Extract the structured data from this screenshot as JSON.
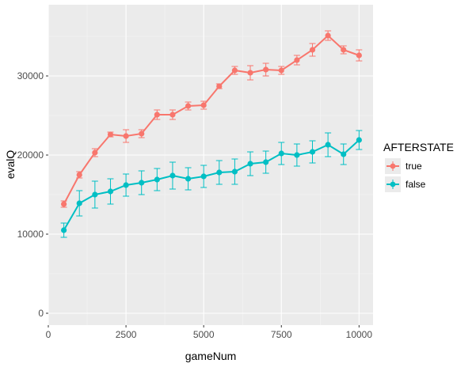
{
  "chart_data": {
    "type": "line",
    "title": "",
    "xlabel": "gameNum",
    "ylabel": "evalQ",
    "xlim": [
      0,
      10450
    ],
    "ylim": [
      -1500,
      39000
    ],
    "x_ticks": [
      0,
      2500,
      5000,
      7500,
      10000
    ],
    "x_tick_labels": [
      "0",
      "2500",
      "5000",
      "7500",
      "10000"
    ],
    "y_ticks": [
      0,
      10000,
      20000,
      30000
    ],
    "y_tick_labels": [
      "0",
      "10000",
      "20000",
      "30000"
    ],
    "grid": true,
    "legend": {
      "title": "AFTERSTATE",
      "position": "right"
    },
    "series": [
      {
        "name": "true",
        "color": "#F8766D",
        "x": [
          500,
          1000,
          1500,
          2000,
          2500,
          3000,
          3500,
          4000,
          4500,
          5000,
          5500,
          6000,
          6500,
          7000,
          7500,
          8000,
          8500,
          9000,
          9500,
          10000
        ],
        "y": [
          13800,
          17500,
          20300,
          22600,
          22400,
          22700,
          25100,
          25100,
          26200,
          26300,
          28700,
          30700,
          30400,
          30800,
          30700,
          32000,
          33300,
          35100,
          33300,
          32600
        ],
        "err": [
          400,
          400,
          500,
          300,
          800,
          500,
          600,
          600,
          500,
          500,
          300,
          500,
          900,
          800,
          500,
          600,
          800,
          600,
          500,
          700
        ]
      },
      {
        "name": "false",
        "color": "#00BFC4",
        "x": [
          500,
          1000,
          1500,
          2000,
          2500,
          3000,
          3500,
          4000,
          4500,
          5000,
          5500,
          6000,
          6500,
          7000,
          7500,
          8000,
          8500,
          9000,
          9500,
          10000
        ],
        "y": [
          10500,
          13900,
          15000,
          15400,
          16200,
          16500,
          16900,
          17400,
          17000,
          17300,
          17800,
          17900,
          18900,
          19100,
          20200,
          20000,
          20400,
          21300,
          20100,
          21900
        ],
        "err": [
          900,
          1600,
          1700,
          1600,
          1400,
          1500,
          1400,
          1700,
          1400,
          1400,
          1500,
          1600,
          1500,
          1400,
          1400,
          1400,
          1400,
          1500,
          1300,
          1200
        ]
      }
    ]
  }
}
